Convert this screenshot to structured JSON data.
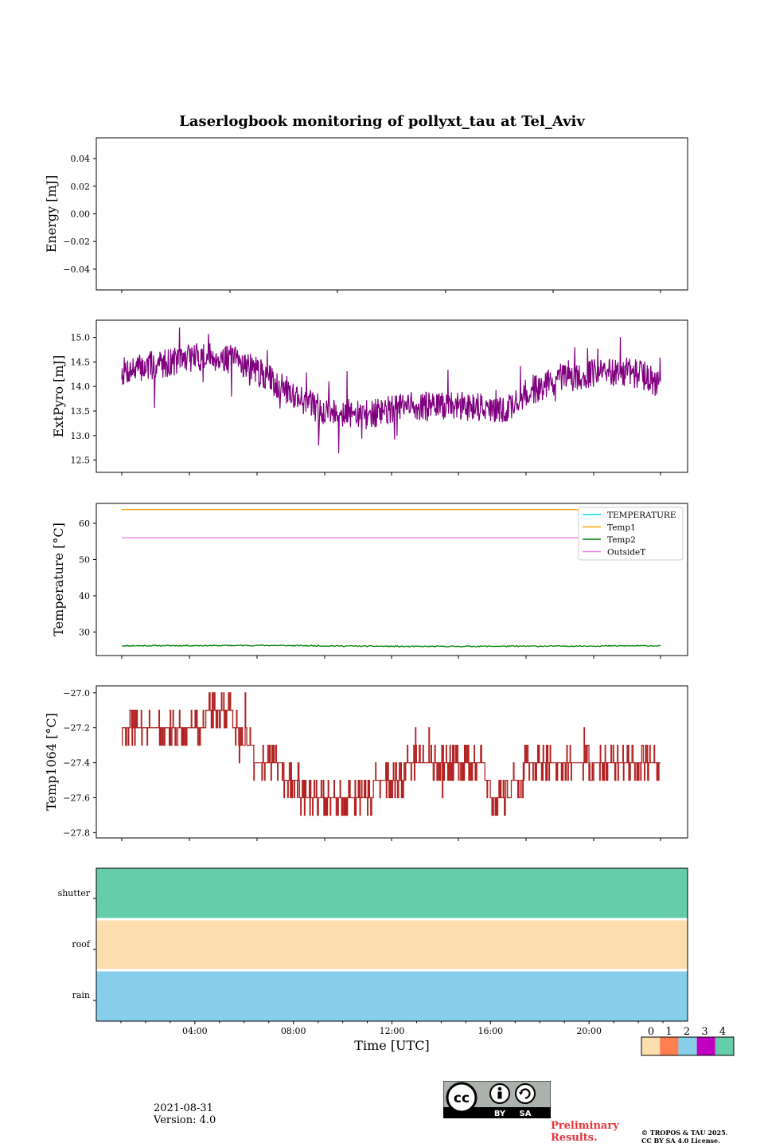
{
  "title": "Laserlogbook monitoring of pollyxt_tau at Tel_Aviv",
  "footer": {
    "date": "2021-08-31",
    "version": "Version: 4.0",
    "preliminary_line1": "Preliminary",
    "preliminary_line2": "Results.",
    "copyright_line1": "© TROPOS & TAU 2025.",
    "copyright_line2": "CC BY SA 4.0 License.",
    "license_badge": {
      "cc": "cc",
      "by": "BY",
      "sa": "SA"
    }
  },
  "colors": {
    "extpyro": "#800080",
    "temp1064": "#b22222",
    "temperature": "#00e5e5",
    "temp1": "#ffa500",
    "temp2": "#008000",
    "outsideT": "#ee82ee",
    "status_0": "#fddeaf",
    "status_1": "#ff7f50",
    "status_2": "#87ceeb",
    "status_3": "#c000c0",
    "status_4": "#66cdaa"
  },
  "chart_data": [
    {
      "type": "line",
      "ylabel": "Energy [mJ]",
      "ylim": [
        -0.055,
        0.055
      ],
      "yticks": [
        "0.04",
        "0.02",
        "0.00",
        "−0.02",
        "−0.04"
      ],
      "ytick_values": [
        0.04,
        0.02,
        0.0,
        -0.02,
        -0.04
      ],
      "series": []
    },
    {
      "type": "line",
      "ylabel": "ExtPyro [mJ]",
      "ylim": [
        12.25,
        15.35
      ],
      "yticks": [
        "15.0",
        "14.5",
        "14.0",
        "13.5",
        "13.0",
        "12.5"
      ],
      "ytick_values": [
        15.0,
        14.5,
        14.0,
        13.5,
        13.0,
        12.5
      ],
      "series": [
        {
          "x_hours": [
            0.0,
            1.0,
            2.0,
            3.0,
            4.0,
            5.0,
            6.0,
            7.0,
            8.0,
            8.5,
            9.0,
            10.0,
            11.0,
            12.0,
            13.0,
            14.0,
            15.0,
            15.5,
            16.0,
            17.0,
            18.0,
            19.0,
            20.0,
            21.0,
            22.0,
            22.5
          ],
          "y": [
            14.3,
            14.4,
            14.5,
            14.6,
            14.6,
            14.5,
            14.2,
            13.9,
            13.6,
            13.5,
            13.5,
            13.4,
            13.5,
            13.6,
            13.6,
            13.6,
            13.6,
            13.5,
            13.5,
            13.9,
            14.1,
            14.2,
            14.3,
            14.3,
            14.2,
            14.0
          ],
          "min": 12.4,
          "max": 15.2,
          "noise": 0.3
        }
      ]
    },
    {
      "type": "line",
      "ylabel": "Temperature [°C]",
      "ylim": [
        23.5,
        65.5
      ],
      "yticks": [
        "60",
        "50",
        "40",
        "30"
      ],
      "ytick_values": [
        60,
        50,
        40,
        30
      ],
      "legend": [
        "TEMPERATURE",
        "Temp1",
        "Temp2",
        "OutsideT"
      ],
      "legend_position": "upper right",
      "series": [
        {
          "x_hours": [
            0.0,
            22.5
          ],
          "y": [
            63.8,
            63.8
          ]
        },
        {
          "x_hours": [
            0.0,
            6.0,
            12.0,
            18.0,
            22.5
          ],
          "y": [
            26.2,
            26.3,
            26.0,
            26.1,
            26.2
          ],
          "noise": 0.15
        },
        {
          "x_hours": [
            0.0,
            22.5
          ],
          "y": [
            56.0,
            56.0
          ]
        }
      ]
    },
    {
      "type": "line",
      "ylabel": "Temp1064 [°C]",
      "ylim": [
        -27.83,
        -26.96
      ],
      "yticks": [
        "−27.0",
        "−27.2",
        "−27.4",
        "−27.6",
        "−27.8"
      ],
      "ytick_values": [
        -27.0,
        -27.2,
        -27.4,
        -27.6,
        -27.8
      ],
      "series": [
        {
          "x_hours": [
            0.0,
            0.8,
            1.0,
            2.0,
            3.0,
            4.0,
            4.5,
            5.0,
            6.0,
            6.5,
            7.0,
            7.8,
            8.0,
            9.0,
            10.0,
            11.0,
            11.5,
            12.0,
            13.0,
            14.0,
            14.5,
            15.0,
            15.5,
            16.0,
            16.5,
            17.0,
            18.0,
            19.0,
            20.0,
            21.0,
            22.0,
            22.5
          ],
          "y": [
            -27.2,
            -27.2,
            -27.2,
            -27.2,
            -27.2,
            -27.1,
            -27.1,
            -27.3,
            -27.4,
            -27.4,
            -27.5,
            -27.6,
            -27.6,
            -27.6,
            -27.6,
            -27.5,
            -27.5,
            -27.4,
            -27.4,
            -27.4,
            -27.4,
            -27.4,
            -27.6,
            -27.6,
            -27.5,
            -27.4,
            -27.4,
            -27.4,
            -27.4,
            -27.4,
            -27.4,
            -27.4
          ],
          "min": -27.8,
          "max": -27.0,
          "quantum": 0.1,
          "flip": 0.3
        }
      ]
    },
    {
      "type": "heatmap",
      "rows": [
        "shutter",
        "roof",
        "rain"
      ],
      "row_status": [
        4,
        0,
        2
      ],
      "xlabel": "Time [UTC]",
      "xticks": [
        "04:00",
        "08:00",
        "12:00",
        "16:00",
        "20:00"
      ],
      "xtick_hours": [
        4,
        8,
        12,
        16,
        20
      ],
      "xlim_hours": [
        0,
        24
      ],
      "colorbar_ticks": [
        "0",
        "1",
        "2",
        "3",
        "4"
      ]
    }
  ]
}
